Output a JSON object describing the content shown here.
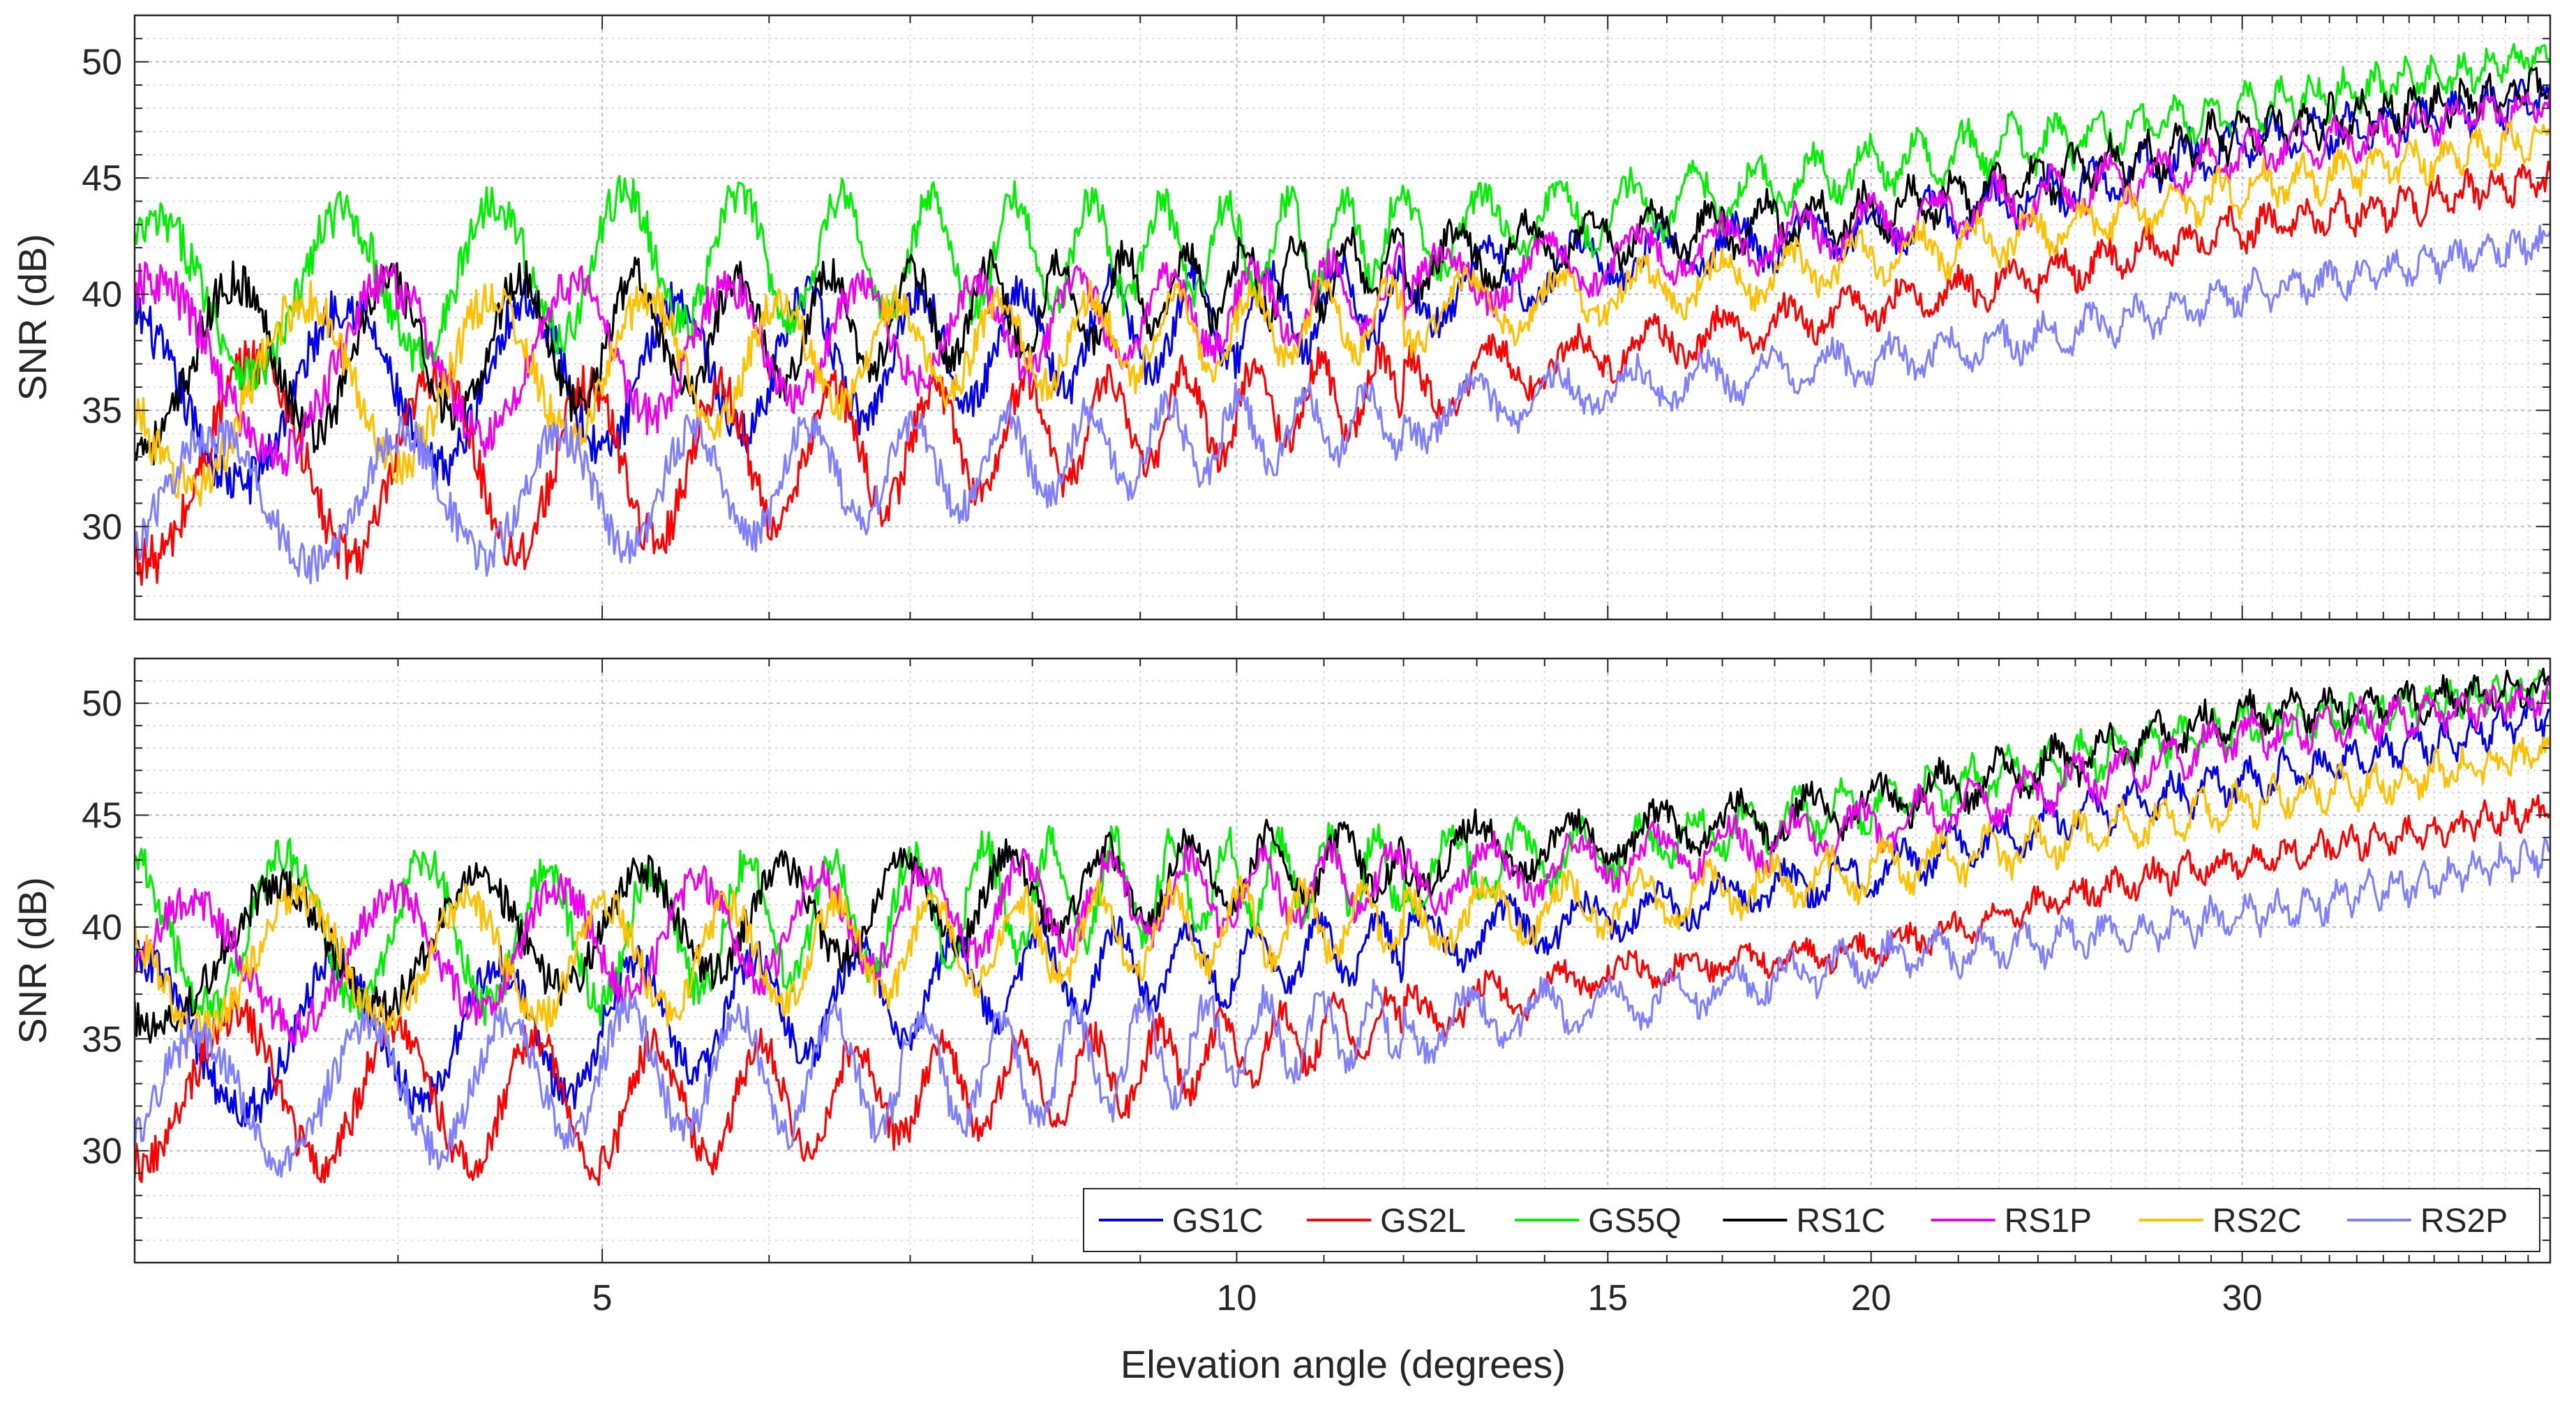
{
  "figure": {
    "xlabel": "Elevation angle (degrees)"
  },
  "colors": {
    "GS1C": "#0000ee",
    "GS2L": "#ff0000",
    "GS5Q": "#00ee00",
    "RS1C": "#000000",
    "RS1P": "#ee00ee",
    "RS2C": "#ffc000",
    "RS2P": "#8080ff",
    "grid": "#b8b8b8",
    "axis": "#262626"
  },
  "chart_data": [
    {
      "type": "line",
      "panel": "top",
      "title": "",
      "xlabel": "",
      "ylabel": "SNR (dB)",
      "xscale": "log",
      "xlim": [
        3,
        42
      ],
      "ylim": [
        26,
        52
      ],
      "xticks": [
        5,
        10,
        15,
        20,
        30
      ],
      "yticks": [
        30,
        35,
        40,
        45,
        50
      ],
      "grid": true,
      "legend": false,
      "series": [
        {
          "name": "GS1C",
          "x": [
            3,
            5,
            10,
            15,
            20,
            30,
            42
          ],
          "values": [
            35.5,
            36.5,
            39.0,
            41.5,
            42.8,
            46.5,
            48.5
          ],
          "osc_amp": [
            4.0,
            2.5,
            1.0,
            0.6
          ]
        },
        {
          "name": "GS2L",
          "x": [
            3,
            5,
            10,
            15,
            20,
            30,
            42
          ],
          "values": [
            33.0,
            32.5,
            35.0,
            37.5,
            39.5,
            42.8,
            45.0
          ],
          "osc_amp": [
            4.5,
            2.5,
            0.8,
            0.5
          ]
        },
        {
          "name": "GS5Q",
          "x": [
            3,
            5,
            10,
            15,
            20,
            30,
            42
          ],
          "values": [
            39.5,
            41.5,
            42.0,
            43.5,
            45.5,
            48.0,
            50.3
          ],
          "osc_amp": [
            3.5,
            2.5,
            1.2,
            0.4
          ]
        },
        {
          "name": "RS1C",
          "x": [
            3,
            5,
            10,
            15,
            20,
            30,
            42
          ],
          "values": [
            37.0,
            38.0,
            40.5,
            42.5,
            43.5,
            47.0,
            49.0
          ],
          "osc_amp": [
            3.5,
            2.0,
            1.0,
            0.6
          ]
        },
        {
          "name": "RS1P",
          "x": [
            3,
            5,
            10,
            15,
            20,
            30,
            42
          ],
          "values": [
            36.5,
            37.5,
            39.5,
            41.5,
            43.0,
            46.0,
            48.3
          ],
          "osc_amp": [
            4.0,
            2.0,
            1.0,
            0.5
          ]
        },
        {
          "name": "RS2C",
          "x": [
            3,
            5,
            10,
            15,
            20,
            30,
            42
          ],
          "values": [
            35.5,
            37.0,
            38.5,
            40.0,
            41.5,
            44.5,
            46.8
          ],
          "osc_amp": [
            4.0,
            2.0,
            1.0,
            0.5
          ]
        },
        {
          "name": "RS2P",
          "x": [
            3,
            5,
            10,
            15,
            20,
            30,
            42
          ],
          "values": [
            31.0,
            31.5,
            34.0,
            36.0,
            37.0,
            40.0,
            42.3
          ],
          "osc_amp": [
            3.0,
            2.0,
            0.8,
            0.4
          ]
        }
      ]
    },
    {
      "type": "line",
      "panel": "bottom",
      "title": "",
      "xlabel": "Elevation angle (degrees)",
      "ylabel": "SNR (dB)",
      "xscale": "log",
      "xlim": [
        3,
        42
      ],
      "ylim": [
        25,
        52
      ],
      "xticks": [
        5,
        10,
        15,
        20,
        30
      ],
      "yticks": [
        30,
        35,
        40,
        45,
        50
      ],
      "grid": true,
      "legend": true,
      "legend_location": "bottom-right",
      "legend_orientation": "horizontal",
      "series": [
        {
          "name": "GS1C",
          "x": [
            3,
            5,
            8,
            10,
            15,
            20,
            25,
            30,
            42
          ],
          "values": [
            35.0,
            35.5,
            38.0,
            38.5,
            40.5,
            42.5,
            45.0,
            46.5,
            49.5
          ],
          "osc_amp": [
            3.5,
            2.0,
            0.8,
            0.6
          ]
        },
        {
          "name": "GS2L",
          "x": [
            3,
            5,
            8,
            10,
            15,
            20,
            25,
            30,
            42
          ],
          "values": [
            33.0,
            32.0,
            33.0,
            34.5,
            38.0,
            39.0,
            41.5,
            43.0,
            45.3
          ],
          "osc_amp": [
            3.5,
            2.0,
            0.5,
            0.4
          ]
        },
        {
          "name": "GS5Q",
          "x": [
            3,
            5,
            8,
            10,
            15,
            20,
            25,
            30,
            42
          ],
          "values": [
            40.0,
            39.5,
            41.5,
            42.0,
            43.5,
            45.5,
            47.5,
            49.0,
            50.8
          ],
          "osc_amp": [
            3.5,
            2.5,
            1.0,
            0.4
          ]
        },
        {
          "name": "RS1C",
          "x": [
            3,
            5,
            8,
            10,
            15,
            20,
            25,
            30,
            42
          ],
          "values": [
            38.5,
            40.0,
            41.5,
            42.5,
            44.0,
            45.5,
            47.5,
            49.5,
            50.7
          ],
          "osc_amp": [
            3.0,
            2.0,
            1.0,
            0.5
          ]
        },
        {
          "name": "RS1P",
          "x": [
            3,
            5,
            8,
            10,
            15,
            20,
            25,
            30,
            42
          ],
          "values": [
            38.0,
            39.5,
            41.0,
            41.5,
            43.0,
            44.5,
            46.5,
            48.5,
            50.3
          ],
          "osc_amp": [
            3.0,
            2.0,
            1.0,
            0.5
          ]
        },
        {
          "name": "RS2C",
          "x": [
            3,
            5,
            8,
            10,
            15,
            20,
            25,
            30,
            42
          ],
          "values": [
            38.5,
            38.5,
            39.5,
            40.0,
            41.0,
            42.5,
            44.0,
            45.5,
            47.8
          ],
          "osc_amp": [
            3.0,
            2.0,
            1.0,
            0.5
          ]
        },
        {
          "name": "RS2P",
          "x": [
            3,
            5,
            8,
            10,
            15,
            20,
            25,
            30,
            42
          ],
          "values": [
            32.0,
            33.5,
            33.5,
            35.0,
            36.5,
            38.5,
            39.5,
            40.5,
            43.3
          ],
          "osc_amp": [
            3.0,
            2.5,
            0.8,
            0.5
          ]
        }
      ]
    }
  ]
}
